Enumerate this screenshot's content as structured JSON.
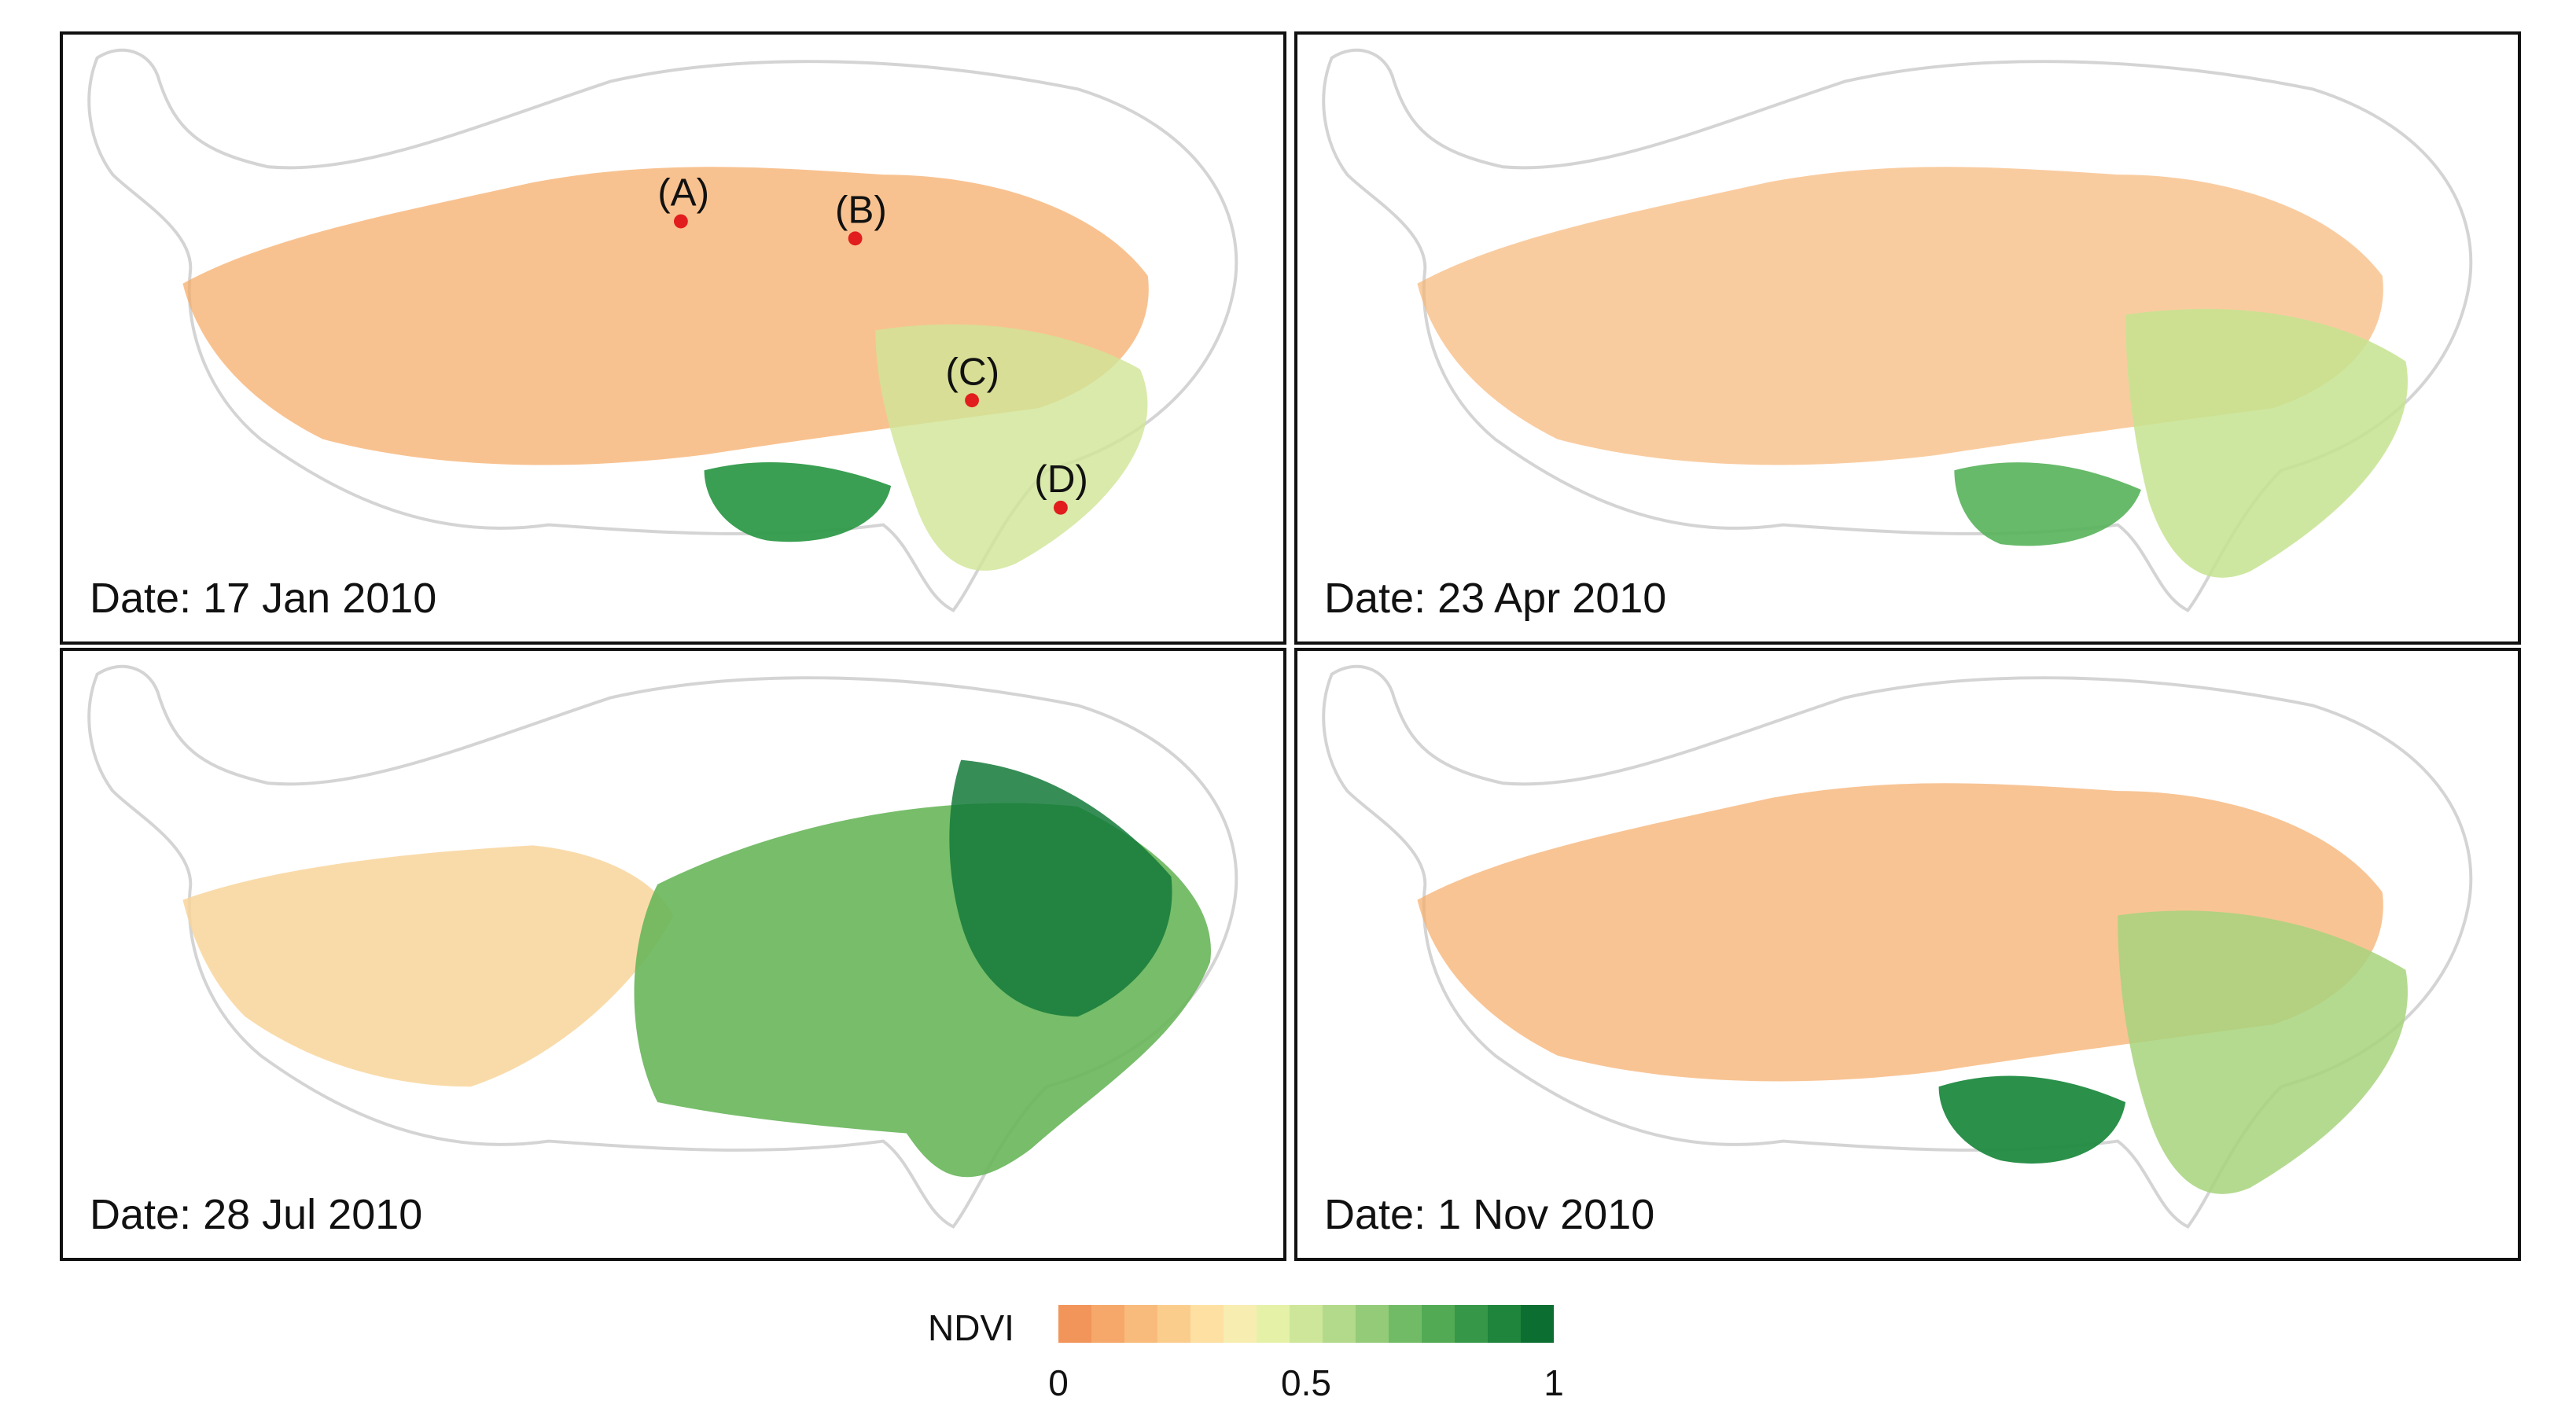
{
  "panels": [
    {
      "date_label": "Date: 17 Jan 2010",
      "map_icon": "tibetan-plateau-ndvi-map",
      "dominant_colors": [
        "#f4a866",
        "#f8c98a",
        "#c9e28a",
        "#2f9a49"
      ],
      "sites": [
        {
          "label": "(A)",
          "marker_color": "#e11d1d"
        },
        {
          "label": "(B)",
          "marker_color": "#e11d1d"
        },
        {
          "label": "(C)",
          "marker_color": "#e11d1d"
        },
        {
          "label": "(D)",
          "marker_color": "#e11d1d"
        }
      ]
    },
    {
      "date_label": "Date: 23 Apr 2010",
      "map_icon": "tibetan-plateau-ndvi-map",
      "dominant_colors": [
        "#f4a866",
        "#f8c98a",
        "#d8ea9a",
        "#4fae55"
      ]
    },
    {
      "date_label": "Date: 28 Jul 2010",
      "map_icon": "tibetan-plateau-ndvi-map",
      "dominant_colors": [
        "#f8d49a",
        "#9fd276",
        "#3f9e4a",
        "#137a38"
      ]
    },
    {
      "date_label": "Date: 1 Nov 2010",
      "map_icon": "tibetan-plateau-ndvi-map",
      "dominant_colors": [
        "#f4a866",
        "#f3dd98",
        "#a7d47c",
        "#1f8a40"
      ]
    }
  ],
  "legend": {
    "title": "NDVI",
    "colors": [
      "#f2955a",
      "#f5a869",
      "#f8bb7b",
      "#fbcd8d",
      "#fde0a2",
      "#f7edb0",
      "#e6f1a8",
      "#cde69a",
      "#b2da8a",
      "#93cb78",
      "#72bb66",
      "#52aa55",
      "#379748",
      "#1f843c",
      "#0d6e31"
    ],
    "ticks": [
      {
        "label": "0",
        "value": 0
      },
      {
        "label": "0.5",
        "value": 0.5
      },
      {
        "label": "1",
        "value": 1
      }
    ]
  }
}
